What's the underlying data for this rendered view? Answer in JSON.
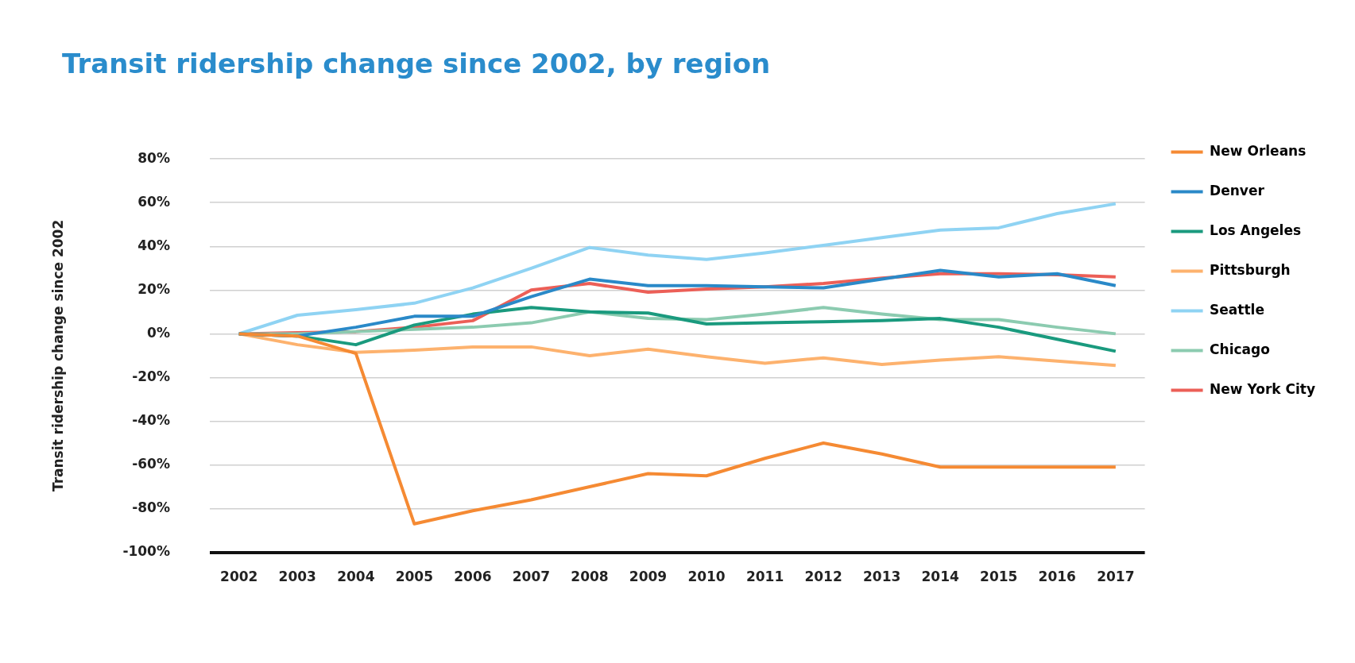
{
  "chart_data": {
    "type": "line",
    "title": "Transit ridership change since 2002, by region",
    "ylabel": "Transit ridership change since 2002",
    "categories": [
      "2002",
      "2003",
      "2004",
      "2005",
      "2006",
      "2007",
      "2008",
      "2009",
      "2010",
      "2011",
      "2012",
      "2013",
      "2014",
      "2015",
      "2016",
      "2017"
    ],
    "series": [
      {
        "name": "New Orleans",
        "color": "#f58a33",
        "values": [
          0,
          -1,
          -9,
          -87,
          -81,
          -76,
          -70,
          -64,
          -65,
          -57,
          -50,
          -55,
          -61,
          -61,
          -61,
          -61
        ]
      },
      {
        "name": "Denver",
        "color": "#2a89c8",
        "values": [
          0,
          -1,
          3,
          8,
          8,
          17,
          25,
          22,
          22,
          21.5,
          21,
          25,
          29,
          26,
          27.5,
          22
        ]
      },
      {
        "name": "Los Angeles",
        "color": "#1a9a7e",
        "values": [
          0,
          -1,
          -5,
          4,
          9,
          12,
          10,
          9.5,
          4.5,
          5,
          5.5,
          6,
          7,
          3,
          -2.5,
          -8
        ]
      },
      {
        "name": "Pittsburgh",
        "color": "#fdb26e",
        "values": [
          0,
          -5,
          -8.5,
          -7.5,
          -6,
          -6,
          -10,
          -7,
          -10.5,
          -13.5,
          -11,
          -14,
          -12,
          -10.5,
          -12.5,
          -14.5
        ]
      },
      {
        "name": "Seattle",
        "color": "#8fd3f3",
        "values": [
          0,
          8.5,
          11,
          14,
          21,
          30,
          39.5,
          36,
          34,
          37,
          40.5,
          44,
          47.5,
          48.5,
          55,
          59.5
        ]
      },
      {
        "name": "Chicago",
        "color": "#8ccbb0",
        "values": [
          0,
          0,
          1,
          2,
          3,
          5,
          10,
          7,
          6.5,
          9,
          12,
          9,
          6.5,
          6.5,
          3,
          0
        ]
      },
      {
        "name": "New York City",
        "color": "#ec5f57",
        "values": [
          0,
          0.5,
          1,
          3,
          6,
          20,
          23,
          19,
          20.5,
          21.5,
          23,
          25.5,
          27.5,
          27.5,
          27,
          26
        ]
      }
    ],
    "ylim": [
      -100,
      80
    ],
    "yticks": [
      {
        "value": -100,
        "label": "-100%"
      },
      {
        "value": -80,
        "label": "-80%"
      },
      {
        "value": -60,
        "label": "-60%"
      },
      {
        "value": -40,
        "label": "-40%"
      },
      {
        "value": -20,
        "label": "-20%"
      },
      {
        "value": 0,
        "label": "0%"
      },
      {
        "value": 20,
        "label": "20%"
      },
      {
        "value": 40,
        "label": "40%"
      },
      {
        "value": 60,
        "label": "60%"
      },
      {
        "value": 80,
        "label": "80%"
      }
    ],
    "grid": "y",
    "legend": "right",
    "marker": "none",
    "line_style": "solid"
  }
}
